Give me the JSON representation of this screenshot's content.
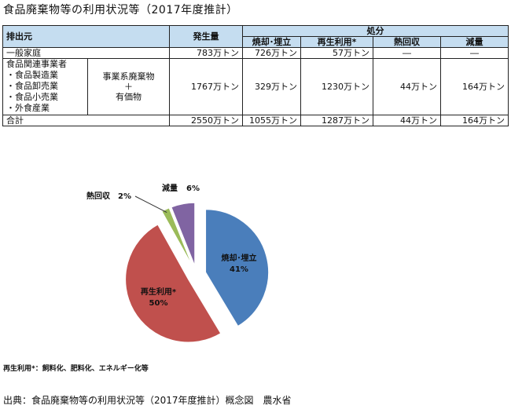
{
  "title": "食品廃棄物等の利用状況等（2017年度推計）",
  "table": {
    "headers": {
      "source": "排出元",
      "generated": "発生量",
      "disposal": "処分",
      "cols": [
        "焼却･埋立",
        "再生利用*",
        "熱回収",
        "減量"
      ]
    },
    "rows": [
      {
        "label": "一般家庭",
        "values": [
          "783万トン",
          "726万トン",
          "57万トン",
          "―",
          "―"
        ]
      },
      {
        "label": "食品関連事業者",
        "sub_items": [
          "・食品製造業",
          "・食品卸売業",
          "・食品小売業",
          "・外食産業"
        ],
        "category_lines": [
          "事業系廃棄物",
          "＋",
          "有価物"
        ],
        "values": [
          "1767万トン",
          "329万トン",
          "1230万トン",
          "44万トン",
          "164万トン"
        ]
      },
      {
        "label": "合計",
        "values": [
          "2550万トン",
          "1055万トン",
          "1287万トン",
          "44万トン",
          "164万トン"
        ]
      }
    ]
  },
  "chart_data": {
    "type": "pie",
    "slices": [
      {
        "label": "焼却･埋立",
        "value": 41,
        "display": "41%",
        "color": "#4a7ebb"
      },
      {
        "label": "再生利用*",
        "value": 50,
        "display": "50%",
        "color": "#c0504d"
      },
      {
        "label": "熱回収",
        "value": 2,
        "display": "2%",
        "color": "#9bbb59"
      },
      {
        "label": "減量",
        "value": 6,
        "display": "6%",
        "color": "#8064a2"
      }
    ]
  },
  "footnote": "再生利用*：飼料化、肥料化、エネルギー化等",
  "source": "出典：食品廃棄物等の利用状況等（2017年度推計）概念図　農水省"
}
